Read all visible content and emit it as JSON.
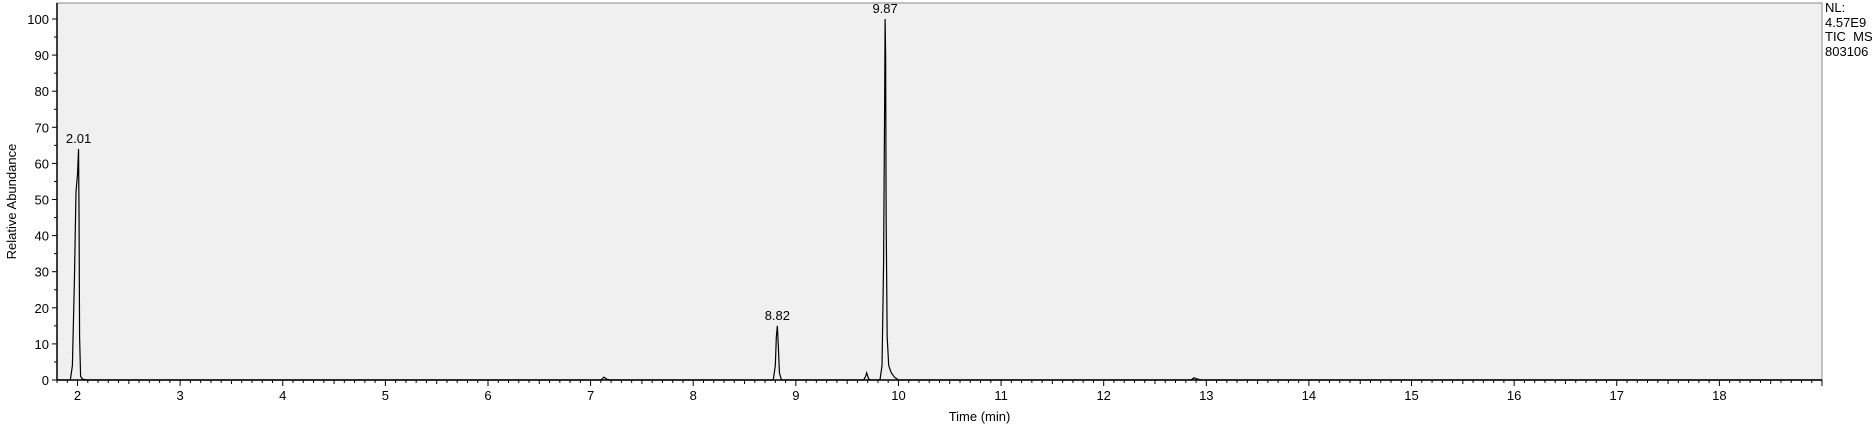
{
  "chart_data": {
    "type": "line",
    "title": "",
    "xlabel": "Time (min)",
    "ylabel": "Relative Abundance",
    "xlim": [
      1.8,
      19.0
    ],
    "ylim": [
      0,
      100
    ],
    "x_ticks": [
      2,
      3,
      4,
      5,
      6,
      7,
      8,
      9,
      10,
      11,
      12,
      13,
      14,
      15,
      16,
      17,
      18
    ],
    "y_ticks": [
      0,
      10,
      20,
      30,
      40,
      50,
      60,
      70,
      80,
      90,
      100
    ],
    "grid": false,
    "colors": {
      "plot_background": "#f0f0f0",
      "trace": "#000000",
      "axis": "#000000"
    },
    "series": [
      {
        "x": [
          1.8,
          1.93,
          1.95,
          1.97,
          1.985,
          2.0,
          2.01,
          2.015,
          2.02,
          2.03,
          2.05,
          2.1,
          7.1,
          7.13,
          7.16,
          7.2,
          8.78,
          8.8,
          8.81,
          8.82,
          8.83,
          8.84,
          8.86,
          9.66,
          9.68,
          9.69,
          9.71,
          9.73,
          9.82,
          9.84,
          9.855,
          9.865,
          9.87,
          9.875,
          9.88,
          9.89,
          9.905,
          9.93,
          9.96,
          10.0,
          12.85,
          12.88,
          12.91,
          12.95,
          19.0
        ],
        "y": [
          0.0,
          0.0,
          4.0,
          28.0,
          52.0,
          57.0,
          64.0,
          45.0,
          12.0,
          1.0,
          0.2,
          0.0,
          0.0,
          0.8,
          0.2,
          0.0,
          0.0,
          4.0,
          12.0,
          15.0,
          9.0,
          2.0,
          0.0,
          0.0,
          1.0,
          2.0,
          0.3,
          0.0,
          0.0,
          4.0,
          32.0,
          75.0,
          100.0,
          90.0,
          45.0,
          12.0,
          4.0,
          2.0,
          0.8,
          0.0,
          0.0,
          0.6,
          0.3,
          0.0,
          0.0
        ]
      }
    ],
    "peak_labels": [
      {
        "x": 2.01,
        "y": 64,
        "text": "2.01"
      },
      {
        "x": 8.82,
        "y": 15,
        "text": "8.82"
      },
      {
        "x": 9.87,
        "y": 100,
        "text": "9.87"
      }
    ]
  },
  "info_panel": {
    "nl_label": "NL:",
    "nl_value": "4.57E9",
    "scan_filter": "TIC  MS",
    "file_name": "803106"
  }
}
